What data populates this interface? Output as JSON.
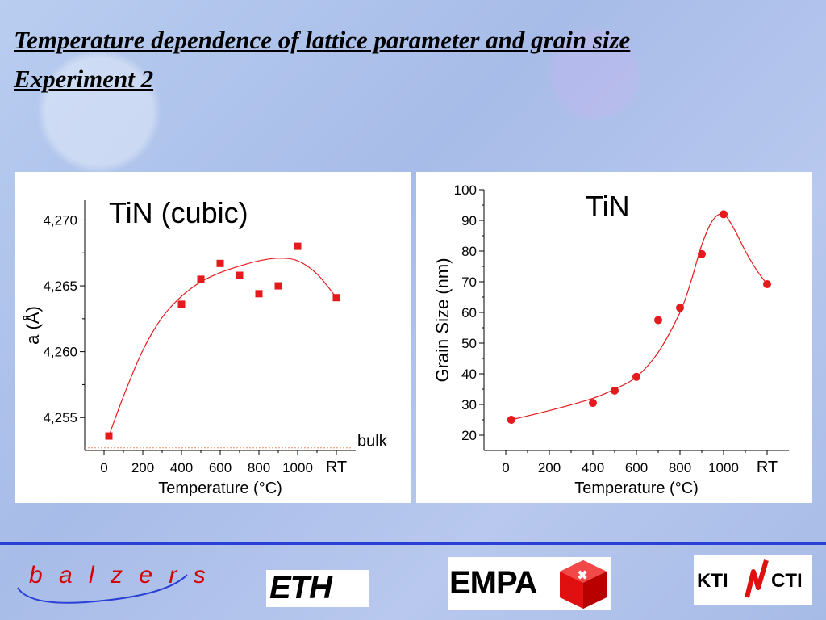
{
  "slide": {
    "title_line1": "Temperature dependence of lattice parameter and grain size",
    "title_line2": "Experiment 2"
  },
  "logos": {
    "balzers": "b a l z e r s",
    "eth": "ETH",
    "empa": "EMPA",
    "kti": "KTI",
    "cti": "CTI"
  },
  "colors": {
    "marker": "#e41a1c",
    "fit_line": "#e41a1c",
    "divider": "#2a3fd6",
    "balzers": "#d40000"
  },
  "chart_data": [
    {
      "type": "scatter",
      "title": "TiN (cubic)",
      "xlabel": "Temperature (°C)",
      "ylabel": "a (Å)",
      "marker": "square",
      "xlim": [
        -100,
        1300
      ],
      "ylim": [
        4.2525,
        4.2715
      ],
      "x_tick_labels": [
        "0",
        "200",
        "400",
        "600",
        "800",
        "1000",
        "RT"
      ],
      "x_tick_values": [
        0,
        200,
        400,
        600,
        800,
        1000,
        1200
      ],
      "y_tick_labels": [
        "4,255",
        "4,260",
        "4,265",
        "4,270"
      ],
      "y_tick_values": [
        4.255,
        4.26,
        4.265,
        4.27
      ],
      "reference_line": {
        "label": "bulk",
        "y": 4.2527
      },
      "series": [
        {
          "x": [
            25,
            400,
            500,
            600,
            700,
            800,
            900,
            1000,
            1200
          ],
          "y": [
            4.2536,
            4.2636,
            4.2655,
            4.2667,
            4.2658,
            4.2644,
            4.265,
            4.268,
            4.2641
          ]
        }
      ],
      "fit_curve": {
        "x": [
          25,
          100,
          200,
          300,
          400,
          500,
          600,
          700,
          800,
          900,
          1000,
          1100,
          1200
        ],
        "y": [
          4.2536,
          4.2566,
          4.2601,
          4.2626,
          4.2642,
          4.2653,
          4.266,
          4.2665,
          4.2669,
          4.2671,
          4.2669,
          4.2659,
          4.2641
        ]
      }
    },
    {
      "type": "scatter",
      "title": "TiN",
      "xlabel": "Temperature (°C)",
      "ylabel": "Grain Size (nm)",
      "marker": "circle",
      "xlim": [
        -100,
        1300
      ],
      "ylim": [
        15,
        100
      ],
      "x_tick_labels": [
        "0",
        "200",
        "400",
        "600",
        "800",
        "1000",
        "RT"
      ],
      "x_tick_values": [
        0,
        200,
        400,
        600,
        800,
        1000,
        1200
      ],
      "y_tick_labels": [
        "20",
        "30",
        "40",
        "50",
        "60",
        "70",
        "80",
        "90",
        "100"
      ],
      "y_tick_values": [
        20,
        30,
        40,
        50,
        60,
        70,
        80,
        90,
        100
      ],
      "series": [
        {
          "x": [
            25,
            400,
            500,
            600,
            700,
            800,
            900,
            1000,
            1200
          ],
          "y": [
            25,
            30.5,
            34.5,
            39,
            57.5,
            61.5,
            79,
            92,
            69.2
          ]
        }
      ],
      "fit_curve": {
        "x": [
          25,
          200,
          400,
          500,
          600,
          700,
          800,
          850,
          900,
          950,
          1000,
          1050,
          1100,
          1150,
          1200
        ],
        "y": [
          25,
          28,
          32,
          35,
          39,
          47,
          60,
          70,
          82,
          90,
          92,
          87,
          80,
          74,
          69.2
        ]
      }
    }
  ]
}
